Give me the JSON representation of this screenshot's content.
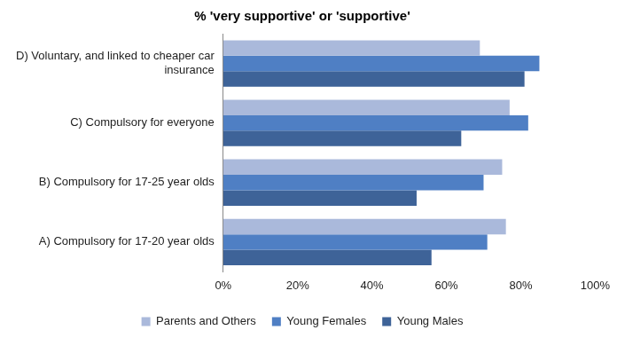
{
  "chart_data": {
    "type": "bar",
    "orientation": "horizontal",
    "title": "% 'very supportive' or 'supportive'",
    "categories": [
      "D) Voluntary, and linked to cheaper car insurance",
      "C) Compulsory for everyone",
      "B) Compulsory for 17-25 year olds",
      "A) Compulsory for 17-20 year olds"
    ],
    "series": [
      {
        "name": "Parents and Others",
        "color": "#aab9db",
        "values": [
          69,
          77,
          75,
          76
        ]
      },
      {
        "name": "Young Females",
        "color": "#4f7fc4",
        "values": [
          85,
          82,
          70,
          71
        ]
      },
      {
        "name": "Young Males",
        "color": "#3e6398",
        "values": [
          81,
          64,
          52,
          56
        ]
      }
    ],
    "xlim": [
      0,
      100
    ],
    "xticks": [
      {
        "value": 0,
        "label": "0%"
      },
      {
        "value": 20,
        "label": "20%"
      },
      {
        "value": 40,
        "label": "40%"
      },
      {
        "value": 60,
        "label": "60%"
      },
      {
        "value": 80,
        "label": "80%"
      },
      {
        "value": 100,
        "label": "100%"
      }
    ],
    "grid": false,
    "legend": "bottom"
  }
}
